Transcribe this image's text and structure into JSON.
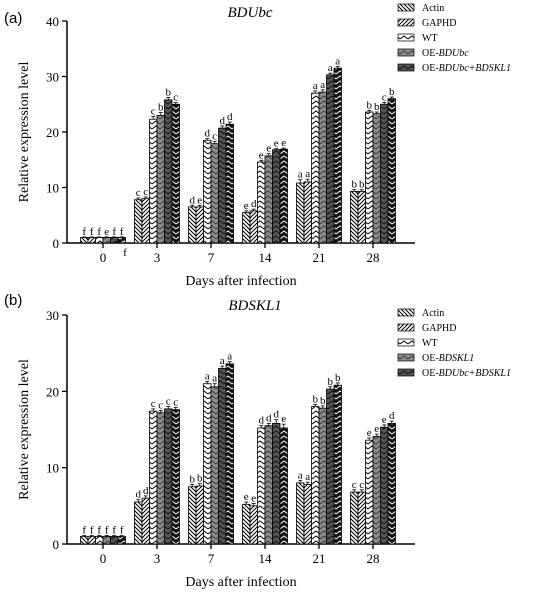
{
  "chart_data": [
    {
      "panel_label": "(a)",
      "title": "BDUbc",
      "type": "bar",
      "xlabel": "Days after infection",
      "ylabel": "Relative expression level",
      "ylim": [
        0,
        40
      ],
      "yticks": [
        "0",
        "10",
        "20",
        "30",
        "40"
      ],
      "categories": [
        "0",
        "3",
        "7",
        "14",
        "21",
        "28"
      ],
      "legend": {
        "placement": "top-right",
        "entries": [
          {
            "text": "Actin",
            "italic": ""
          },
          {
            "text": "GAPHD",
            "italic": ""
          },
          {
            "text": "WT",
            "italic": ""
          },
          {
            "text": "OE-",
            "italic": "BDUbc"
          },
          {
            "text": "OE-",
            "italic": "BDUbc+BDSKL1"
          }
        ]
      },
      "series": [
        {
          "values": [
            1.0,
            7.8,
            6.5,
            5.5,
            10.8,
            9.3
          ],
          "errors": [
            0.1,
            0.3,
            0.3,
            0.3,
            0.6,
            0.3
          ],
          "letters": [
            "f",
            "c",
            "d",
            "e",
            "a",
            "b"
          ],
          "pattern": "backslash"
        },
        {
          "values": [
            1.0,
            8.0,
            6.5,
            5.8,
            11.0,
            9.3
          ],
          "errors": [
            0.1,
            0.3,
            0.3,
            0.3,
            0.5,
            0.3
          ],
          "letters": [
            "f",
            "c",
            "e",
            "d",
            "a",
            "b"
          ],
          "pattern": "slash"
        },
        {
          "values": [
            1.0,
            22.3,
            18.5,
            14.6,
            27.0,
            23.6
          ],
          "errors": [
            0.1,
            0.5,
            0.3,
            0.3,
            0.4,
            0.3
          ],
          "letters": [
            "f",
            "c",
            "d",
            "e",
            "a",
            "b"
          ],
          "pattern": "chevron-white"
        },
        {
          "values": [
            1.0,
            23.0,
            17.9,
            15.7,
            27.2,
            23.3
          ],
          "errors": [
            0.1,
            0.5,
            0.4,
            0.4,
            0.4,
            0.3
          ],
          "letters": [
            "e",
            "b",
            "c",
            "e",
            "a",
            "b"
          ],
          "pattern": "chevron-gray"
        },
        {
          "values": [
            1.0,
            25.8,
            20.7,
            16.8,
            30.3,
            25.0
          ],
          "errors": [
            0.1,
            0.4,
            0.4,
            0.2,
            0.3,
            0.3
          ],
          "letters": [
            "f",
            "b",
            "d",
            "e",
            "a",
            "c"
          ],
          "pattern": "chevron-dark"
        },
        {
          "values": [
            1.0,
            25.0,
            21.4,
            16.9,
            31.5,
            26.0
          ],
          "errors": [
            0.1,
            0.3,
            0.4,
            0.2,
            0.3,
            0.3
          ],
          "letters": [
            "f",
            "c",
            "d",
            "e",
            "a",
            "b"
          ],
          "pattern": "chevron-black"
        }
      ],
      "extra_labels": [
        {
          "text": "f",
          "category": "0",
          "value": -1.6
        }
      ]
    },
    {
      "panel_label": "(b)",
      "title": "BDSKL1",
      "type": "bar",
      "xlabel": "Days after infection",
      "ylabel": "Relative expression level",
      "ylim": [
        0,
        30
      ],
      "yticks": [
        "0",
        "10",
        "20",
        "30"
      ],
      "categories": [
        "0",
        "3",
        "7",
        "14",
        "21",
        "28"
      ],
      "legend": {
        "placement": "top-right",
        "entries": [
          {
            "text": "Actin",
            "italic": ""
          },
          {
            "text": "GAPHD",
            "italic": ""
          },
          {
            "text": "WT",
            "italic": ""
          },
          {
            "text": "OE-",
            "italic": "BDSKL1"
          },
          {
            "text": "OE-",
            "italic": "BDUbc+BDSKL1"
          }
        ]
      },
      "series": [
        {
          "values": [
            1.0,
            5.5,
            7.5,
            5.2,
            8.0,
            6.8
          ],
          "errors": [
            0.1,
            0.3,
            0.3,
            0.3,
            0.3,
            0.3
          ],
          "letters": [
            "f",
            "d",
            "b",
            "e",
            "a",
            "c"
          ],
          "pattern": "backslash"
        },
        {
          "values": [
            1.0,
            6.0,
            7.6,
            5.0,
            7.8,
            6.8
          ],
          "errors": [
            0.1,
            0.3,
            0.3,
            0.3,
            0.3,
            0.3
          ],
          "letters": [
            "f",
            "d",
            "b",
            "e",
            "a",
            "c"
          ],
          "pattern": "slash"
        },
        {
          "values": [
            1.0,
            17.4,
            21.0,
            15.2,
            18.0,
            13.6
          ],
          "errors": [
            0.1,
            0.3,
            0.3,
            0.3,
            0.3,
            0.3
          ],
          "letters": [
            "f",
            "c",
            "a",
            "d",
            "b",
            "e"
          ],
          "pattern": "chevron-white"
        },
        {
          "values": [
            1.0,
            17.2,
            20.6,
            15.5,
            17.8,
            14.1
          ],
          "errors": [
            0.1,
            0.3,
            0.4,
            0.3,
            0.3,
            0.3
          ],
          "letters": [
            "f",
            "c",
            "a",
            "d",
            "b",
            "e"
          ],
          "pattern": "chevron-gray"
        },
        {
          "values": [
            1.0,
            17.7,
            23.0,
            15.8,
            20.3,
            15.3
          ],
          "errors": [
            0.1,
            0.3,
            0.3,
            0.5,
            0.3,
            0.3
          ],
          "letters": [
            "f",
            "c",
            "a",
            "d",
            "b",
            "e"
          ],
          "pattern": "chevron-dark"
        },
        {
          "values": [
            1.0,
            17.6,
            23.6,
            15.2,
            20.8,
            15.8
          ],
          "errors": [
            0.1,
            0.3,
            0.3,
            0.5,
            0.3,
            0.3
          ],
          "letters": [
            "f",
            "c",
            "a",
            "e",
            "b",
            "d"
          ],
          "pattern": "chevron-black"
        }
      ],
      "extra_labels": []
    }
  ]
}
